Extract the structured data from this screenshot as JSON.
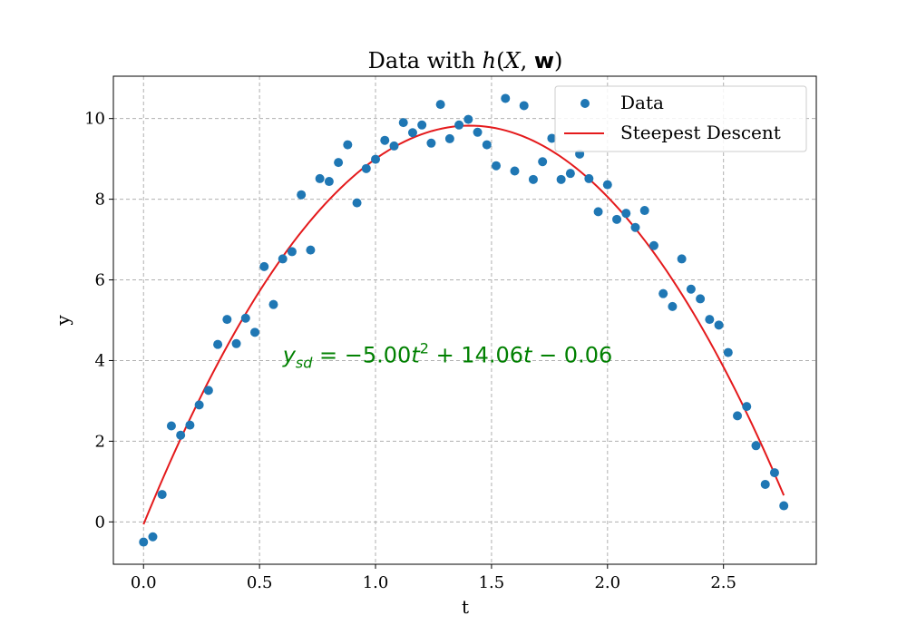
{
  "chart_data": {
    "type": "scatter",
    "title_prefix": "Data with ",
    "title_math_h": "h",
    "title_math_args_open": "(",
    "title_math_X": "X",
    "title_math_comma": ", ",
    "title_math_w": "w",
    "title_math_close": ")",
    "xlabel": "t",
    "ylabel": "y",
    "xlim": [
      -0.13,
      2.9
    ],
    "ylim": [
      -1.05,
      11.05
    ],
    "xticks": [
      0.0,
      0.5,
      1.0,
      1.5,
      2.0,
      2.5
    ],
    "xtick_labels": [
      "0.0",
      "0.5",
      "1.0",
      "1.5",
      "2.0",
      "2.5"
    ],
    "yticks": [
      0,
      2,
      4,
      6,
      8,
      10
    ],
    "ytick_labels": [
      "0",
      "2",
      "4",
      "6",
      "8",
      "10"
    ],
    "grid": true,
    "legend_placement": "top-right",
    "colors": {
      "data": "#1f77b4",
      "fit": "#e41a1c",
      "annotation": "#008000",
      "grid": "#b0b0b0"
    },
    "series": [
      {
        "name": "Data",
        "kind": "scatter",
        "x": [
          0.0,
          0.04,
          0.08,
          0.12,
          0.16,
          0.2,
          0.24,
          0.28,
          0.32,
          0.36,
          0.4,
          0.44,
          0.48,
          0.52,
          0.56,
          0.6,
          0.64,
          0.68,
          0.72,
          0.76,
          0.8,
          0.84,
          0.88,
          0.92,
          0.96,
          1.0,
          1.04,
          1.08,
          1.12,
          1.16,
          1.2,
          1.24,
          1.28,
          1.32,
          1.36,
          1.4,
          1.44,
          1.48,
          1.52,
          1.56,
          1.6,
          1.64,
          1.68,
          1.72,
          1.76,
          1.8,
          1.84,
          1.88,
          1.92,
          1.96,
          2.0,
          2.04,
          2.08,
          2.12,
          2.16,
          2.2,
          2.24,
          2.28,
          2.32,
          2.36,
          2.4,
          2.44,
          2.48,
          2.52,
          2.56,
          2.6,
          2.64,
          2.68,
          2.72,
          2.76
        ],
        "y": [
          -0.5,
          -0.37,
          0.68,
          2.38,
          2.15,
          2.4,
          2.9,
          3.26,
          4.4,
          5.02,
          4.42,
          5.05,
          4.7,
          6.33,
          5.39,
          6.52,
          6.7,
          8.11,
          6.74,
          8.51,
          8.44,
          8.91,
          9.35,
          7.91,
          8.76,
          8.99,
          9.46,
          9.32,
          9.9,
          9.65,
          9.84,
          9.39,
          10.35,
          9.5,
          9.84,
          9.98,
          9.66,
          9.35,
          8.83,
          10.5,
          8.7,
          10.32,
          8.49,
          8.93,
          9.51,
          8.49,
          8.64,
          9.12,
          8.51,
          7.69,
          8.36,
          7.5,
          7.65,
          7.3,
          7.72,
          6.85,
          5.66,
          5.34,
          6.52,
          5.77,
          5.53,
          5.02,
          4.88,
          4.2,
          2.63,
          2.86,
          1.89,
          0.93,
          1.22,
          0.4
        ]
      },
      {
        "name": "Steepest Descent",
        "kind": "line",
        "coefficients": {
          "a": -5.0,
          "b": 14.06,
          "c": -0.06
        },
        "x_range": [
          0.0,
          2.76
        ]
      }
    ],
    "annotation": {
      "y_symbol": "y",
      "subscript": "sd",
      "eq_part1": " = −5.00",
      "t_symbol": "t",
      "power": "2",
      "eq_part2": " + 14.06",
      "eq_part3": " − 0.06",
      "anchor_x": 0.6,
      "anchor_y": 3.95
    }
  }
}
